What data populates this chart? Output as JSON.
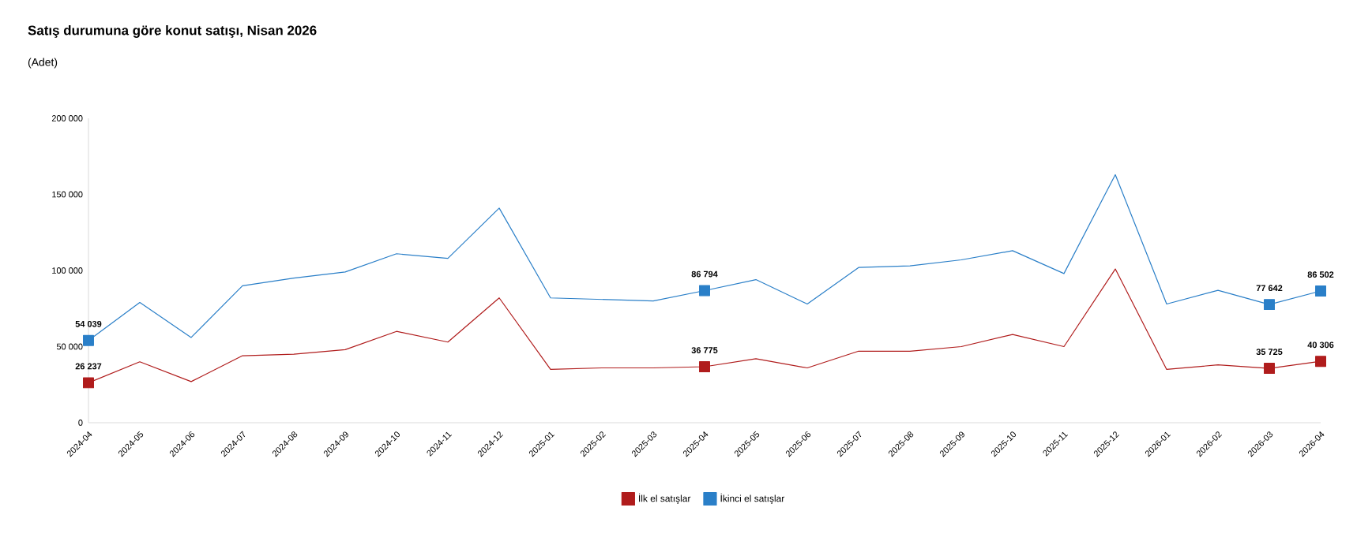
{
  "chart_data": {
    "type": "line",
    "title": "Satış durumuna göre konut satışı, Nisan 2026",
    "subtitle": "(Adet)",
    "categories": [
      "2024-04",
      "2024-05",
      "2024-06",
      "2024-07",
      "2024-08",
      "2024-09",
      "2024-10",
      "2024-11",
      "2024-12",
      "2025-01",
      "2025-02",
      "2025-03",
      "2025-04",
      "2025-05",
      "2025-06",
      "2025-07",
      "2025-08",
      "2025-09",
      "2025-10",
      "2025-11",
      "2025-12",
      "2026-01",
      "2026-02",
      "2026-03",
      "2026-04"
    ],
    "series": [
      {
        "name": "İlk el satışlar",
        "color": "#b01c1c",
        "values": [
          26237,
          40000,
          27000,
          44000,
          45000,
          48000,
          60000,
          53000,
          82000,
          35000,
          36000,
          36000,
          36775,
          42000,
          36000,
          47000,
          47000,
          50000,
          58000,
          50000,
          101000,
          35000,
          38000,
          35725,
          40306
        ]
      },
      {
        "name": "İkinci el satışlar",
        "color": "#2a7fc8",
        "values": [
          54039,
          79000,
          56000,
          90000,
          95000,
          99000,
          111000,
          108000,
          141000,
          82000,
          81000,
          80000,
          86794,
          94000,
          78000,
          102000,
          103000,
          107000,
          113000,
          98000,
          163000,
          78000,
          87000,
          77642,
          86502
        ]
      },
      {
        "type": "scatter",
        "color": "#b01c1c",
        "marker": "square",
        "values": [
          26237,
          null,
          null,
          null,
          null,
          null,
          null,
          null,
          null,
          null,
          null,
          null,
          36775,
          null,
          null,
          null,
          null,
          null,
          null,
          null,
          null,
          null,
          null,
          35725,
          40306
        ],
        "value_labels": [
          "26 237",
          null,
          null,
          null,
          null,
          null,
          null,
          null,
          null,
          null,
          null,
          null,
          "36 775",
          null,
          null,
          null,
          null,
          null,
          null,
          null,
          null,
          null,
          null,
          "35 725",
          "40 306"
        ]
      },
      {
        "type": "scatter",
        "color": "#2a7fc8",
        "marker": "square",
        "values": [
          54039,
          null,
          null,
          null,
          null,
          null,
          null,
          null,
          null,
          null,
          null,
          null,
          86794,
          null,
          null,
          null,
          null,
          null,
          null,
          null,
          null,
          null,
          null,
          77642,
          86502
        ],
        "value_labels": [
          "54 039",
          null,
          null,
          null,
          null,
          null,
          null,
          null,
          null,
          null,
          null,
          null,
          "86 794",
          null,
          null,
          null,
          null,
          null,
          null,
          null,
          null,
          null,
          null,
          "77 642",
          "86 502"
        ]
      }
    ],
    "ylim": [
      0,
      200000
    ],
    "yticks": [
      0,
      {
        "value": 50000,
        "label": "50 000"
      },
      {
        "value": 100000,
        "label": "100 000"
      },
      {
        "value": 150000,
        "label": "150 000"
      },
      {
        "value": 200000,
        "label": "200 000"
      }
    ],
    "line_style": "solid",
    "grid": false,
    "legend": "bottom"
  }
}
